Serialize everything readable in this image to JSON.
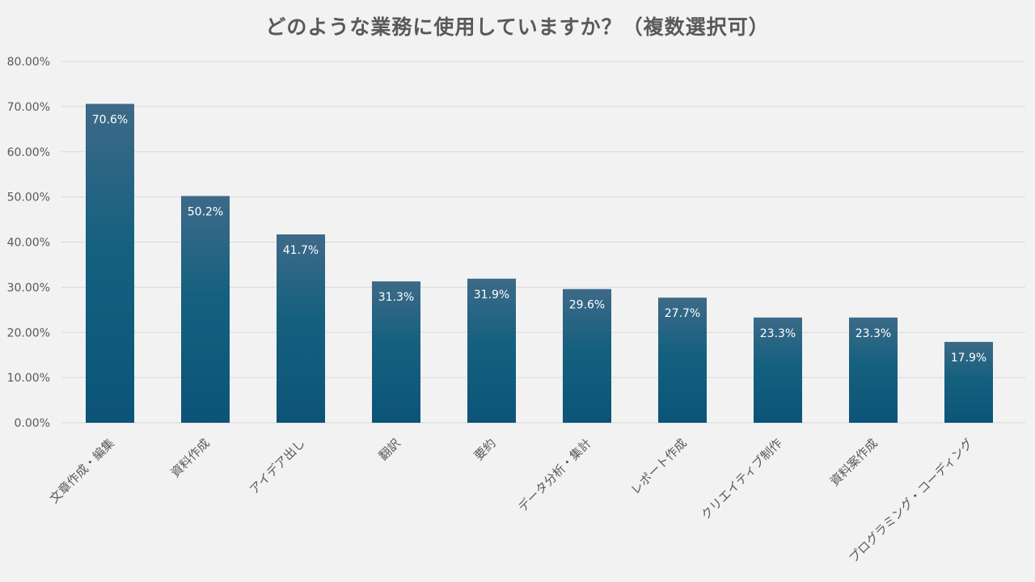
{
  "chart_data": {
    "type": "bar",
    "title": "どのような業務に使用していますか？（複数選択可）",
    "categories": [
      "文章作成・編集",
      "資料作成",
      "アイデア出し",
      "翻訳",
      "要約",
      "データ分析・集計",
      "レポート作成",
      "クリエイティブ制作",
      "資料案作成",
      "プログラミング・コーディング"
    ],
    "values": [
      70.6,
      50.2,
      41.7,
      31.3,
      31.9,
      29.6,
      27.7,
      23.3,
      23.3,
      17.9
    ],
    "data_labels": [
      "70.6%",
      "50.2%",
      "41.7%",
      "31.3%",
      "31.9%",
      "29.6%",
      "27.7%",
      "23.3%",
      "23.3%",
      "17.9%"
    ],
    "y_ticks": [
      "0.00%",
      "10.00%",
      "20.00%",
      "30.00%",
      "40.00%",
      "50.00%",
      "60.00%",
      "70.00%",
      "80.00%"
    ],
    "ylim": [
      0,
      80
    ],
    "grid": true,
    "legend": "none",
    "colors": {
      "bar_top": "#3d6a88",
      "bar_mid": "#15607f",
      "bar_bottom": "#0b5478",
      "grid": "#d9d9d9",
      "text": "#595959",
      "background": "#f2f2f2"
    }
  }
}
